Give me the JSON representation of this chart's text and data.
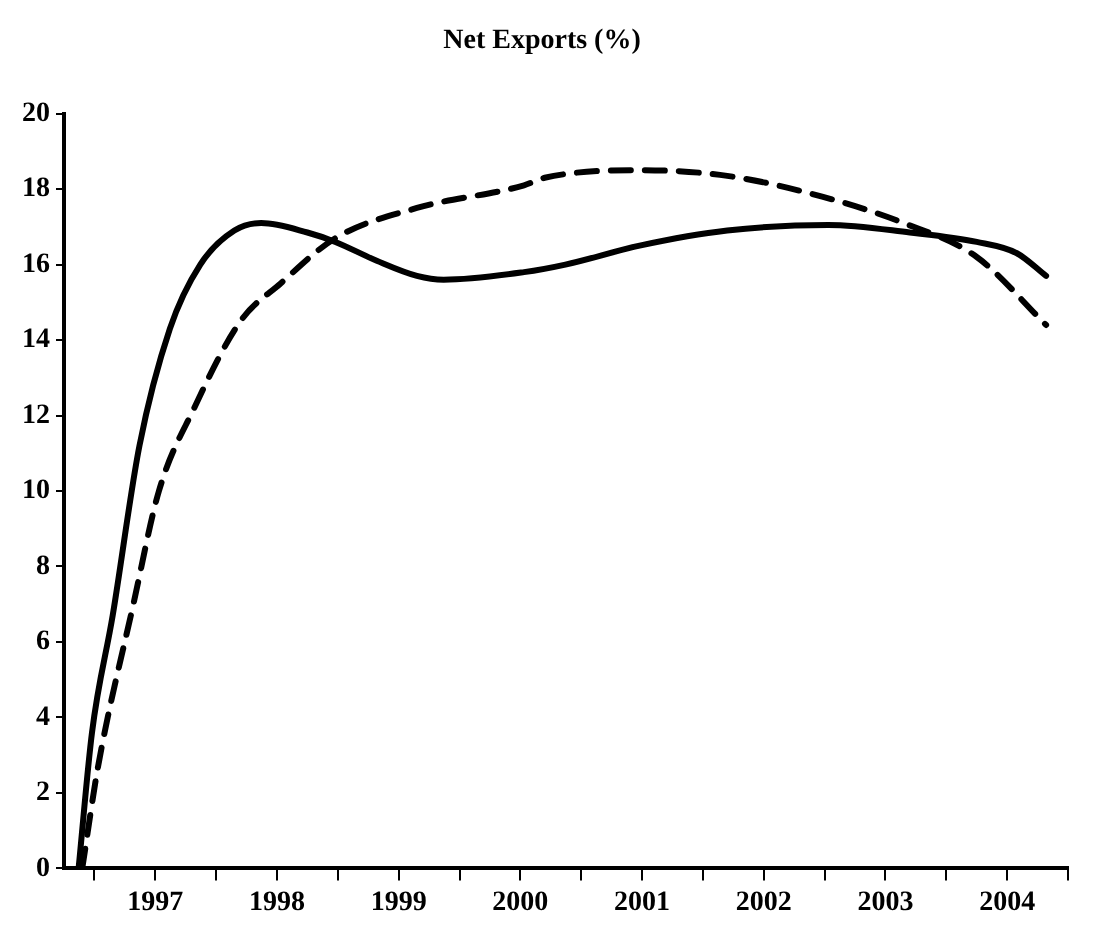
{
  "chart_data": {
    "type": "line",
    "title": "Net Exports (%)",
    "xlim": [
      1996.75,
      2005
    ],
    "xticks": [
      {
        "value": 1997,
        "label": null
      },
      {
        "value": 1997.5,
        "label": "1997"
      },
      {
        "value": 1998,
        "label": null
      },
      {
        "value": 1998.5,
        "label": "1998"
      },
      {
        "value": 1999,
        "label": null
      },
      {
        "value": 1999.5,
        "label": "1999"
      },
      {
        "value": 2000,
        "label": null
      },
      {
        "value": 2000.5,
        "label": "2000"
      },
      {
        "value": 2001,
        "label": null
      },
      {
        "value": 2001.5,
        "label": "2001"
      },
      {
        "value": 2002,
        "label": null
      },
      {
        "value": 2002.5,
        "label": "2002"
      },
      {
        "value": 2003,
        "label": null
      },
      {
        "value": 2003.5,
        "label": "2003"
      },
      {
        "value": 2004,
        "label": null
      },
      {
        "value": 2004.5,
        "label": "2004"
      },
      {
        "value": 2005,
        "label": null
      }
    ],
    "ylim": [
      0,
      20
    ],
    "yticks": [
      0,
      2,
      4,
      6,
      8,
      10,
      12,
      14,
      16,
      18,
      20
    ],
    "grid": false,
    "legend": false,
    "marker": "none",
    "series": [
      {
        "color": "#000000",
        "line_style": "solid",
        "x": [
          1996.87,
          1996.98,
          1997.15,
          1997.37,
          1997.62,
          1997.87,
          1998.15,
          1998.37,
          1998.75,
          1998.98,
          1999.32,
          1999.65,
          1999.87,
          2000.53,
          2000.87,
          2001.48,
          2002.2,
          2003.03,
          2003.7,
          2004.25,
          2004.58,
          2004.82
        ],
        "values": [
          0,
          3.6,
          6.7,
          11.2,
          14.3,
          16.0,
          16.9,
          17.1,
          16.85,
          16.6,
          16.1,
          15.7,
          15.6,
          15.8,
          16.0,
          16.5,
          16.9,
          17.05,
          16.85,
          16.6,
          16.3,
          15.7
        ]
      },
      {
        "color": "#000000",
        "line_style": "dashed",
        "x": [
          1996.9,
          1997.03,
          1997.32,
          1997.53,
          1997.82,
          1998.2,
          1998.53,
          1998.98,
          1999.65,
          2000.53,
          2000.7,
          2001.48,
          2002.2,
          2002.98,
          2003.65,
          2004.25,
          2004.82
        ],
        "values": [
          0,
          2.7,
          7.0,
          10.0,
          12.2,
          14.5,
          15.5,
          16.7,
          17.5,
          18.1,
          18.3,
          18.5,
          18.35,
          17.8,
          17.1,
          16.2,
          14.4
        ]
      }
    ]
  }
}
